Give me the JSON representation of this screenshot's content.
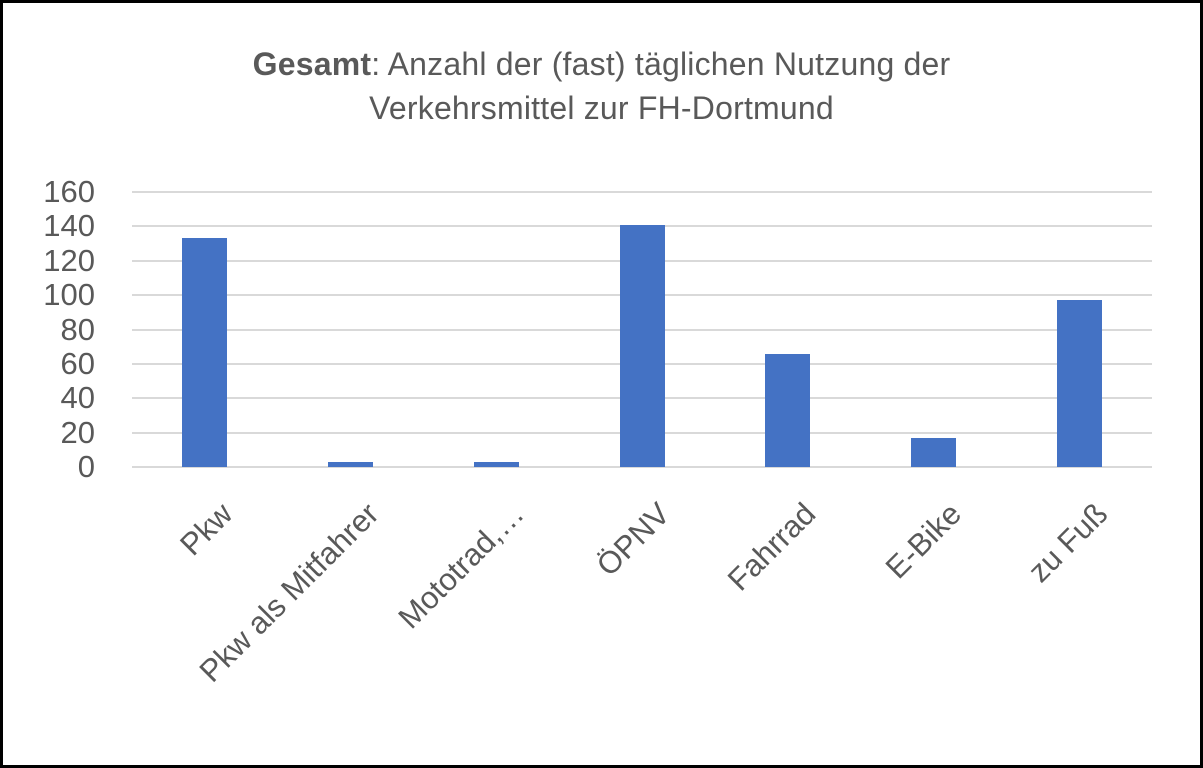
{
  "title": {
    "bold": "Gesamt",
    "line1_rest": ": Anzahl der (fast) täglichen Nutzung der",
    "line2": "Verkehrsmittel zur FH-Dortmund"
  },
  "chart_data": {
    "type": "bar",
    "title": "Gesamt: Anzahl der (fast) täglichen Nutzung der Verkehrsmittel zur FH-Dortmund",
    "categories": [
      "Pkw",
      "Pkw als Mitfahrer",
      "Mototrad,…",
      "ÖPNV",
      "Fahrrad",
      "E-Bike",
      "zu Fuß"
    ],
    "values": [
      133,
      3,
      3,
      141,
      66,
      17,
      97
    ],
    "xlabel": "",
    "ylabel": "",
    "ylim": [
      0,
      160
    ],
    "yticks": [
      0,
      20,
      40,
      60,
      80,
      100,
      120,
      140,
      160
    ],
    "grid": true,
    "legend": "none",
    "bar_color": "#4472C4",
    "gridline_color": "#D9D9D9",
    "text_color": "#595959"
  }
}
